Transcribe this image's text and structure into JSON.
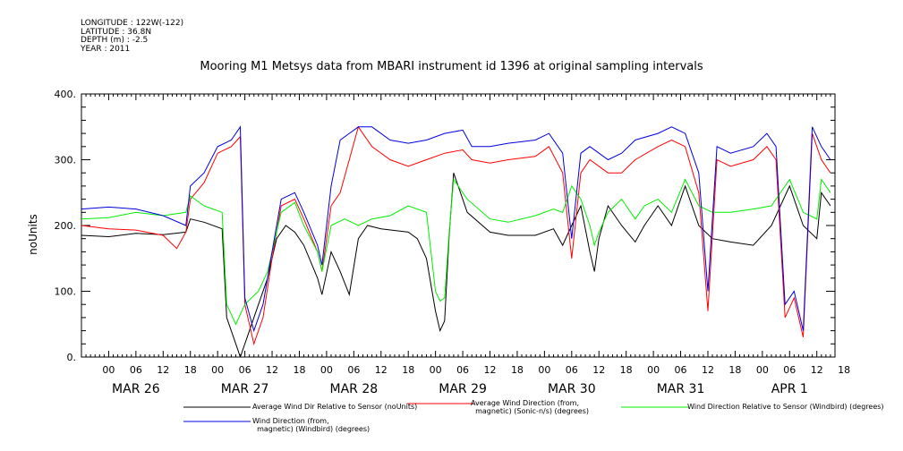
{
  "header": {
    "longitude": "LONGITUDE : 122W(-122)",
    "latitude": "LATITUDE : 36.8N",
    "depth": "DEPTH (m) : -2.5",
    "year": "YEAR : 2011"
  },
  "chart_data": {
    "type": "line",
    "title": "Mooring M1 Metsys data from MBARI instrument id 1396 at original sampling intervals",
    "ylabel": "noUnits",
    "ylim": [
      0,
      400
    ],
    "yticks": [
      "0.",
      "100.",
      "200.",
      "300.",
      "400."
    ],
    "xlim_hours": [
      -6,
      160
    ],
    "xtick_hours": [
      "00",
      "06",
      "12",
      "18",
      "00",
      "06",
      "12",
      "18",
      "00",
      "06",
      "12",
      "18",
      "00",
      "06",
      "12",
      "18",
      "00",
      "06",
      "12",
      "18",
      "00",
      "06",
      "12",
      "18",
      "00",
      "06",
      "12",
      "18"
    ],
    "day_labels": [
      "MAR 26",
      "MAR 27",
      "MAR 28",
      "MAR 29",
      "MAR 30",
      "MAR 31",
      "APR  1"
    ],
    "grid": false,
    "series": [
      {
        "name": "Average Wind Dir Relative to Sensor (noUnits)",
        "color": "#000000",
        "points": [
          [
            -6,
            185
          ],
          [
            0,
            183
          ],
          [
            6,
            188
          ],
          [
            12,
            186
          ],
          [
            17,
            190
          ],
          [
            18,
            210
          ],
          [
            21,
            205
          ],
          [
            25,
            195
          ],
          [
            26,
            60
          ],
          [
            28,
            20
          ],
          [
            29,
            0
          ],
          [
            31,
            40
          ],
          [
            33,
            80
          ],
          [
            35,
            120
          ],
          [
            37,
            180
          ],
          [
            39,
            200
          ],
          [
            41,
            190
          ],
          [
            43,
            170
          ],
          [
            46,
            120
          ],
          [
            47,
            95
          ],
          [
            49,
            160
          ],
          [
            51,
            130
          ],
          [
            53,
            95
          ],
          [
            55,
            180
          ],
          [
            57,
            200
          ],
          [
            60,
            195
          ],
          [
            66,
            190
          ],
          [
            68,
            180
          ],
          [
            70,
            150
          ],
          [
            72,
            70
          ],
          [
            73,
            40
          ],
          [
            74,
            55
          ],
          [
            75,
            185
          ],
          [
            76,
            280
          ],
          [
            79,
            220
          ],
          [
            84,
            190
          ],
          [
            88,
            185
          ],
          [
            94,
            185
          ],
          [
            98,
            195
          ],
          [
            100,
            170
          ],
          [
            102,
            200
          ],
          [
            104,
            230
          ],
          [
            106,
            160
          ],
          [
            107,
            130
          ],
          [
            108,
            180
          ],
          [
            110,
            230
          ],
          [
            113,
            200
          ],
          [
            116,
            175
          ],
          [
            118,
            200
          ],
          [
            121,
            230
          ],
          [
            124,
            200
          ],
          [
            127,
            260
          ],
          [
            130,
            200
          ],
          [
            133,
            180
          ],
          [
            137,
            175
          ],
          [
            142,
            170
          ],
          [
            146,
            200
          ],
          [
            150,
            260
          ],
          [
            153,
            200
          ],
          [
            156,
            180
          ],
          [
            157,
            250
          ],
          [
            159,
            230
          ]
        ]
      },
      {
        "name": "Average Wind Direction (from, magnetic) (Sonic-n/s) (degrees)",
        "color": "#ff0000",
        "points": [
          [
            -6,
            200
          ],
          [
            0,
            195
          ],
          [
            6,
            193
          ],
          [
            12,
            185
          ],
          [
            15,
            165
          ],
          [
            17,
            190
          ],
          [
            18,
            240
          ],
          [
            21,
            265
          ],
          [
            24,
            310
          ],
          [
            27,
            320
          ],
          [
            29,
            335
          ],
          [
            30,
            80
          ],
          [
            32,
            20
          ],
          [
            34,
            60
          ],
          [
            36,
            150
          ],
          [
            38,
            230
          ],
          [
            41,
            240
          ],
          [
            43,
            210
          ],
          [
            46,
            160
          ],
          [
            47,
            130
          ],
          [
            49,
            230
          ],
          [
            51,
            250
          ],
          [
            53,
            300
          ],
          [
            55,
            350
          ],
          [
            58,
            320
          ],
          [
            62,
            300
          ],
          [
            66,
            290
          ],
          [
            70,
            300
          ],
          [
            74,
            310
          ],
          [
            78,
            315
          ],
          [
            80,
            300
          ],
          [
            84,
            295
          ],
          [
            88,
            300
          ],
          [
            94,
            305
          ],
          [
            97,
            320
          ],
          [
            100,
            280
          ],
          [
            102,
            150
          ],
          [
            104,
            280
          ],
          [
            106,
            300
          ],
          [
            110,
            280
          ],
          [
            113,
            280
          ],
          [
            116,
            300
          ],
          [
            121,
            320
          ],
          [
            124,
            330
          ],
          [
            127,
            320
          ],
          [
            130,
            250
          ],
          [
            132,
            70
          ],
          [
            134,
            300
          ],
          [
            137,
            290
          ],
          [
            142,
            300
          ],
          [
            145,
            320
          ],
          [
            147,
            300
          ],
          [
            149,
            60
          ],
          [
            151,
            90
          ],
          [
            153,
            30
          ],
          [
            155,
            340
          ],
          [
            157,
            300
          ],
          [
            159,
            280
          ]
        ]
      },
      {
        "name": "Wind Direction Relative to Sensor (Windbird) (degrees)",
        "color": "#00ee00",
        "points": [
          [
            -6,
            210
          ],
          [
            0,
            212
          ],
          [
            6,
            220
          ],
          [
            12,
            215
          ],
          [
            17,
            220
          ],
          [
            18,
            245
          ],
          [
            21,
            230
          ],
          [
            25,
            220
          ],
          [
            26,
            80
          ],
          [
            28,
            50
          ],
          [
            30,
            80
          ],
          [
            33,
            100
          ],
          [
            35,
            130
          ],
          [
            38,
            220
          ],
          [
            41,
            235
          ],
          [
            43,
            200
          ],
          [
            46,
            160
          ],
          [
            47,
            130
          ],
          [
            49,
            200
          ],
          [
            52,
            210
          ],
          [
            55,
            200
          ],
          [
            58,
            210
          ],
          [
            62,
            215
          ],
          [
            66,
            230
          ],
          [
            70,
            220
          ],
          [
            72,
            100
          ],
          [
            73,
            85
          ],
          [
            74,
            90
          ],
          [
            75,
            190
          ],
          [
            76,
            270
          ],
          [
            79,
            240
          ],
          [
            84,
            210
          ],
          [
            88,
            205
          ],
          [
            94,
            215
          ],
          [
            98,
            225
          ],
          [
            100,
            220
          ],
          [
            102,
            260
          ],
          [
            104,
            240
          ],
          [
            106,
            200
          ],
          [
            107,
            170
          ],
          [
            108,
            190
          ],
          [
            110,
            220
          ],
          [
            113,
            240
          ],
          [
            116,
            210
          ],
          [
            118,
            230
          ],
          [
            121,
            240
          ],
          [
            124,
            220
          ],
          [
            127,
            270
          ],
          [
            130,
            230
          ],
          [
            133,
            220
          ],
          [
            137,
            220
          ],
          [
            142,
            225
          ],
          [
            146,
            230
          ],
          [
            150,
            270
          ],
          [
            153,
            220
          ],
          [
            156,
            210
          ],
          [
            157,
            270
          ],
          [
            159,
            250
          ]
        ]
      },
      {
        "name": "Wind Direction (from, magnetic) (Windbird) (degrees)",
        "color": "#0000dd",
        "points": [
          [
            -6,
            225
          ],
          [
            0,
            228
          ],
          [
            6,
            225
          ],
          [
            12,
            215
          ],
          [
            17,
            200
          ],
          [
            18,
            260
          ],
          [
            21,
            280
          ],
          [
            24,
            320
          ],
          [
            27,
            330
          ],
          [
            29,
            350
          ],
          [
            30,
            90
          ],
          [
            32,
            40
          ],
          [
            34,
            80
          ],
          [
            36,
            160
          ],
          [
            38,
            240
          ],
          [
            41,
            250
          ],
          [
            43,
            220
          ],
          [
            46,
            170
          ],
          [
            47,
            140
          ],
          [
            49,
            260
          ],
          [
            51,
            330
          ],
          [
            53,
            340
          ],
          [
            55,
            350
          ],
          [
            58,
            350
          ],
          [
            62,
            330
          ],
          [
            66,
            325
          ],
          [
            70,
            330
          ],
          [
            74,
            340
          ],
          [
            78,
            345
          ],
          [
            80,
            320
          ],
          [
            84,
            320
          ],
          [
            88,
            325
          ],
          [
            94,
            330
          ],
          [
            97,
            340
          ],
          [
            100,
            310
          ],
          [
            102,
            180
          ],
          [
            104,
            310
          ],
          [
            106,
            320
          ],
          [
            110,
            300
          ],
          [
            113,
            310
          ],
          [
            116,
            330
          ],
          [
            121,
            340
          ],
          [
            124,
            350
          ],
          [
            127,
            340
          ],
          [
            130,
            280
          ],
          [
            132,
            100
          ],
          [
            134,
            320
          ],
          [
            137,
            310
          ],
          [
            142,
            320
          ],
          [
            145,
            340
          ],
          [
            147,
            320
          ],
          [
            149,
            80
          ],
          [
            151,
            100
          ],
          [
            153,
            40
          ],
          [
            155,
            350
          ],
          [
            157,
            320
          ],
          [
            159,
            300
          ]
        ]
      }
    ]
  },
  "legend": {
    "s1": "Average Wind Dir Relative to Sensor (noUnits)",
    "s2": "Average Wind Direction (from,\n  magnetic) (Sonic-n/s) (degrees)",
    "s3": "Wind Direction Relative to Sensor (Windbird) (degrees)",
    "s4": "Wind Direction (from,\n  magnetic) (Windbird) (degrees)"
  }
}
